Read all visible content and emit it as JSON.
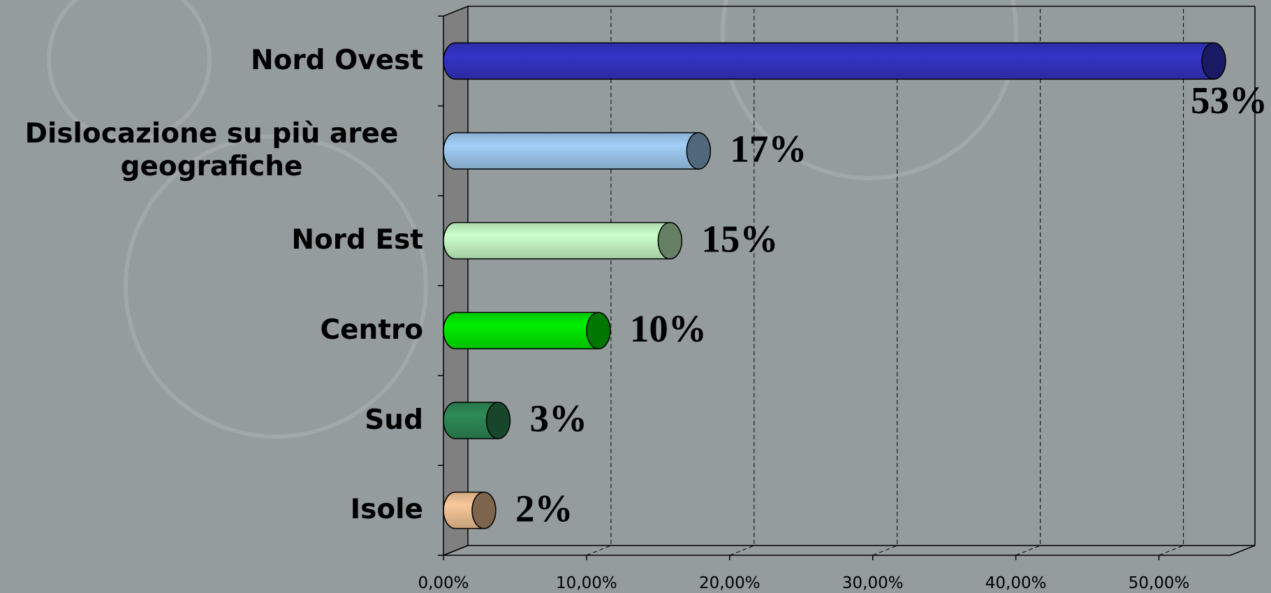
{
  "chart_data": {
    "type": "bar",
    "orientation": "horizontal",
    "categories": [
      "Nord Ovest",
      "Dislocazione su più aree geografiche",
      "Nord Est",
      "Centro",
      "Sud",
      "Isole"
    ],
    "values": [
      53,
      17,
      15,
      10,
      3,
      2
    ],
    "value_labels": [
      "53%",
      "17%",
      "15%",
      "10%",
      "3%",
      "2%"
    ],
    "colors": [
      "#3434c8",
      "#a2cff8",
      "#ccffcc",
      "#00ee00",
      "#2e8b57",
      "#f8c89a"
    ],
    "xlim": [
      0,
      55
    ],
    "xticks": [
      {
        "value": 0,
        "label": "0,00%"
      },
      {
        "value": 10,
        "label": "10,00%"
      },
      {
        "value": 20,
        "label": "20,00%"
      },
      {
        "value": 30,
        "label": "30,00%"
      },
      {
        "value": 40,
        "label": "40,00%"
      },
      {
        "value": 50,
        "label": "50,00%"
      }
    ],
    "grid": true
  }
}
